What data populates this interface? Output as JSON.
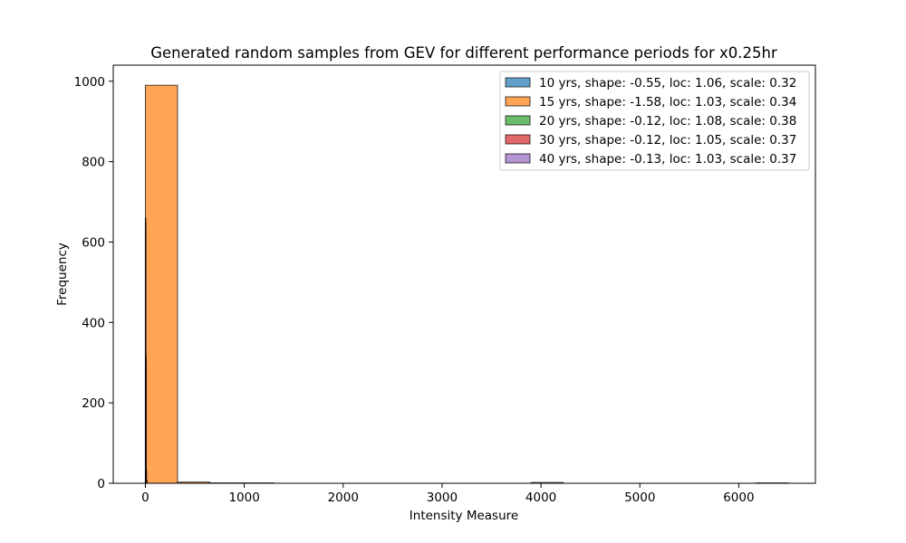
{
  "chart_data": {
    "type": "bar",
    "title": "Generated random samples from GEV for different performance periods for x0.25hr",
    "xlabel": "Intensity Measure",
    "ylabel": "Frequency",
    "xlim": [
      -325,
      6775
    ],
    "ylim": [
      0,
      1040
    ],
    "xticks": [
      0,
      1000,
      2000,
      3000,
      4000,
      5000,
      6000
    ],
    "yticks": [
      0,
      200,
      400,
      600,
      800,
      1000
    ],
    "grid": false,
    "legend_position": "top-right",
    "series": [
      {
        "name": "10 yrs, shape: -0.55, loc: 1.06, scale: 0.32",
        "color": "#1f77b4",
        "bins": [
          [
            -1,
            0.2,
            2
          ],
          [
            0.2,
            1.4,
            520
          ],
          [
            1.4,
            2.6,
            300
          ],
          [
            2.6,
            3.8,
            120
          ],
          [
            3.8,
            5,
            40
          ],
          [
            5,
            6.2,
            12
          ],
          [
            6.2,
            8,
            6
          ]
        ]
      },
      {
        "name": "15 yrs, shape: -1.58, loc: 1.03, scale: 0.34",
        "color": "#ff7f0e",
        "bins": [
          [
            0,
            325,
            990
          ],
          [
            325,
            650,
            3
          ],
          [
            650,
            975,
            1
          ],
          [
            975,
            1300,
            1
          ],
          [
            1300,
            1625,
            0
          ],
          [
            1625,
            1950,
            0
          ],
          [
            1950,
            2275,
            0
          ],
          [
            2275,
            2600,
            0
          ],
          [
            2600,
            2925,
            0
          ],
          [
            2925,
            3250,
            0
          ],
          [
            3250,
            3575,
            0
          ],
          [
            3575,
            3900,
            0
          ],
          [
            3900,
            4225,
            2
          ],
          [
            4225,
            4550,
            0
          ],
          [
            4550,
            4875,
            0
          ],
          [
            4875,
            5200,
            0
          ],
          [
            5200,
            5525,
            0
          ],
          [
            5525,
            5850,
            0
          ],
          [
            5850,
            6175,
            0
          ],
          [
            6175,
            6500,
            1
          ]
        ]
      },
      {
        "name": "20 yrs, shape: -0.12, loc: 1.08, scale: 0.38",
        "color": "#2ca02c",
        "bins": [
          [
            0,
            3,
            660
          ],
          [
            3,
            6,
            300
          ],
          [
            6,
            9,
            30
          ],
          [
            9,
            12,
            8
          ],
          [
            12,
            15,
            2
          ]
        ]
      },
      {
        "name": "30 yrs, shape: -0.12, loc: 1.05, scale: 0.37",
        "color": "#d62728",
        "bins": [
          [
            0,
            3,
            640
          ],
          [
            3,
            6,
            320
          ],
          [
            6,
            9,
            30
          ],
          [
            9,
            12,
            8
          ],
          [
            12,
            15,
            2
          ]
        ]
      },
      {
        "name": "40 yrs, shape: -0.13, loc: 1.03, scale: 0.37",
        "color": "#9467bd",
        "bins": [
          [
            0,
            3,
            650
          ],
          [
            3,
            6,
            310
          ],
          [
            6,
            9,
            30
          ],
          [
            9,
            12,
            8
          ],
          [
            12,
            15,
            2
          ]
        ]
      }
    ]
  }
}
